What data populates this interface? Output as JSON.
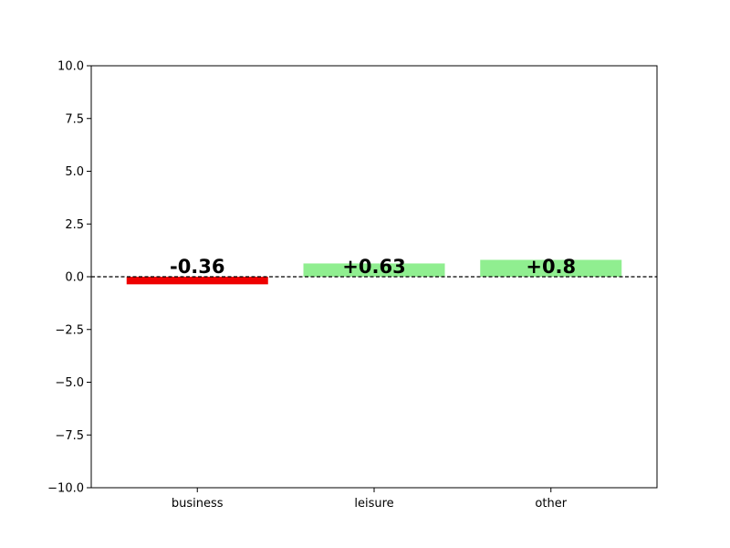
{
  "chart_data": {
    "type": "bar",
    "categories": [
      "business",
      "leisure",
      "other"
    ],
    "values": [
      -0.36,
      0.63,
      0.8
    ],
    "data_labels": [
      "-0.36",
      "+0.63",
      "+0.8"
    ],
    "title": "",
    "xlabel": "",
    "ylabel": "",
    "ylim": [
      -10,
      10
    ],
    "yticks": [
      -10,
      -7.5,
      -5,
      -2.5,
      0,
      2.5,
      5,
      7.5,
      10
    ],
    "ytick_labels": [
      "−10.0",
      "−7.5",
      "−5.0",
      "−2.5",
      "0.0",
      "2.5",
      "5.0",
      "7.5",
      "10.0"
    ],
    "grid": false,
    "zero_line": "dashed",
    "colors": {
      "positive": "#90ee90",
      "negative": "#ee0000",
      "zero_line": "#000000",
      "frame": "#000000"
    }
  }
}
